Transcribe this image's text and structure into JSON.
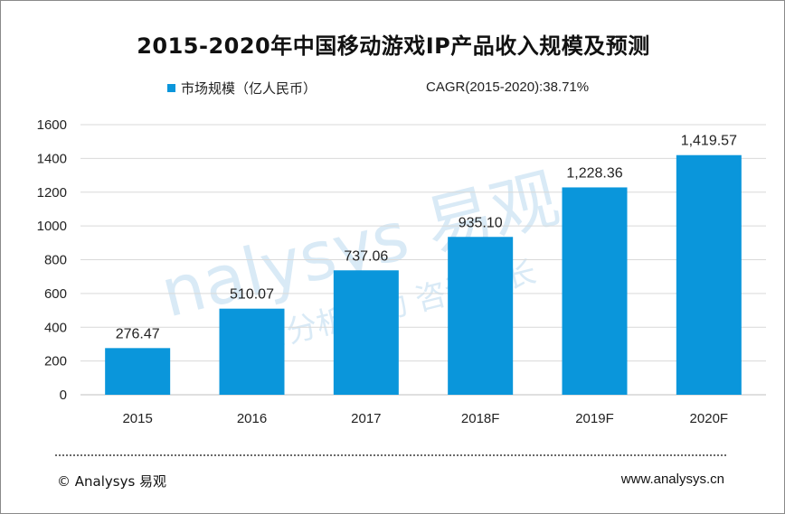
{
  "header": {
    "title": "2015-2020年中国移动游戏IP产品收入规模及预测"
  },
  "legend": {
    "label": "市场规模（亿人民币）",
    "cagr": "CAGR(2015-2020):38.71%"
  },
  "watermark": {
    "brand": "nalysys 易观",
    "tagline": "实时分析驱动    咨询成长"
  },
  "footer": {
    "copyright": "© Analysys 易观",
    "website": "www.analysys.cn"
  },
  "colors": {
    "bar": "#0a96db",
    "grid": "#d9d9d9",
    "axis": "#bfbfbf"
  },
  "chart_data": {
    "type": "bar",
    "title": "2015-2020年中国移动游戏IP产品收入规模及预测",
    "xlabel": "",
    "ylabel": "",
    "categories": [
      "2015",
      "2016",
      "2017",
      "2018F",
      "2019F",
      "2020F"
    ],
    "series": [
      {
        "name": "市场规模（亿人民币）",
        "values": [
          276.47,
          510.07,
          737.06,
          935.1,
          1228.36,
          1419.57
        ],
        "labels": [
          "276.47",
          "510.07",
          "737.06",
          "935.10",
          "1,228.36",
          "1,419.57"
        ]
      }
    ],
    "ylim": [
      0,
      1600
    ],
    "yticks": [
      0,
      200,
      400,
      600,
      800,
      1000,
      1200,
      1400,
      1600
    ],
    "grid": true,
    "legend_position": "top-left"
  }
}
